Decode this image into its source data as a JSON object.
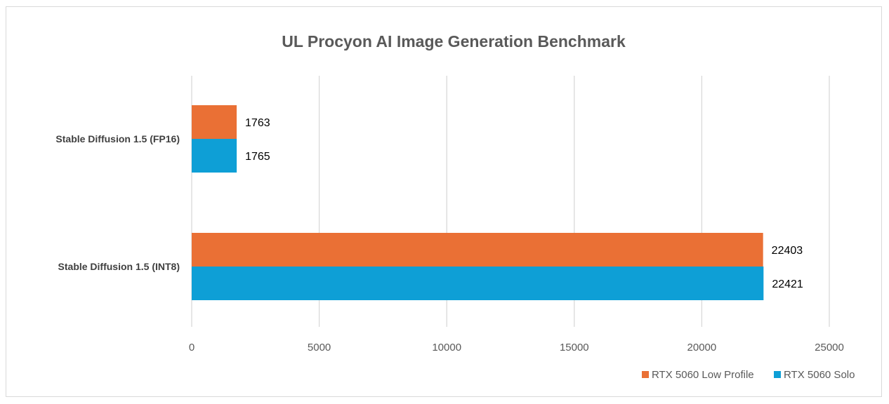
{
  "chart_data": {
    "type": "bar",
    "orientation": "horizontal",
    "title": "UL Procyon AI Image Generation Benchmark",
    "categories": [
      "Stable Diffusion 1.5 (FP16)",
      "Stable Diffusion 1.5 (INT8)"
    ],
    "series": [
      {
        "name": "RTX 5060 Low Profile",
        "color": "#ea7035",
        "values": [
          1763,
          22403
        ]
      },
      {
        "name": "RTX 5060 Solo",
        "color": "#0e9fd6",
        "values": [
          1765,
          22421
        ]
      }
    ],
    "xlim": [
      0,
      25000
    ],
    "xticks": [
      0,
      5000,
      10000,
      15000,
      20000,
      25000
    ],
    "xtick_labels": [
      "0",
      "5000",
      "10000",
      "15000",
      "20000",
      "25000"
    ],
    "grid": true,
    "data_labels": true,
    "legend_position": "bottom-right"
  }
}
